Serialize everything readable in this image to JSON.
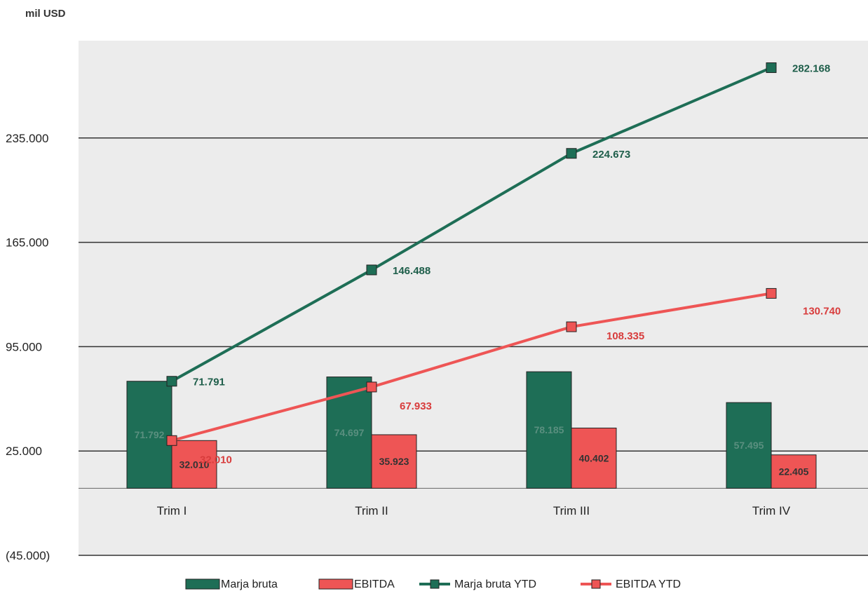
{
  "chart_data": {
    "type": "bar",
    "unit_label": "mil USD",
    "categories": [
      "Trim I",
      "Trim II",
      "Trim III",
      "Trim IV"
    ],
    "ylim": [
      -45000,
      305000
    ],
    "yticks": [
      235000,
      165000,
      95000,
      25000,
      -45000
    ],
    "ytick_labels": [
      "235.000",
      "165.000",
      "95.000",
      "25.000",
      "(45.000)"
    ],
    "grid": true,
    "legend_position": "bottom",
    "series": [
      {
        "name": "Marja bruta",
        "kind": "bar",
        "color": "#1e6e56",
        "values": [
          71792,
          74697,
          78185,
          57495
        ],
        "labels": [
          "71.792",
          "74.697",
          "78.185",
          "57.495"
        ]
      },
      {
        "name": "EBITDA",
        "kind": "bar",
        "color": "#ee5555",
        "values": [
          32010,
          35923,
          40402,
          22405
        ],
        "labels": [
          "32.010",
          "35.923",
          "40.402",
          "22.405"
        ]
      },
      {
        "name": "Marja bruta  YTD",
        "kind": "line",
        "color": "#1e6e56",
        "values": [
          71791,
          146488,
          224673,
          282168
        ],
        "labels": [
          "71.791",
          "146.488",
          "224.673",
          "282.168"
        ]
      },
      {
        "name": "EBITDA  YTD",
        "kind": "line",
        "color": "#ee5555",
        "values": [
          32010,
          67933,
          108335,
          130740
        ],
        "labels": [
          "32.010",
          "67.933",
          "108.335",
          "130.740"
        ]
      }
    ]
  }
}
